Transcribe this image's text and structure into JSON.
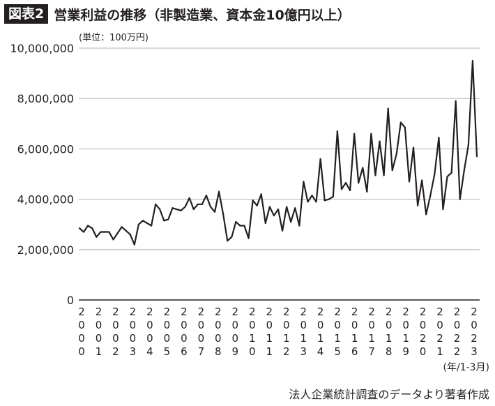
{
  "header": {
    "badge": "図表2",
    "title": "営業利益の推移（非製造業、資本金10億円以上）"
  },
  "unit_label": "(単位：100万円)",
  "period_label": "(年/1-3月)",
  "source_note": "法人企業統計調査のデータより著者作成",
  "colors": {
    "line": "#231f20",
    "grid": "#b3b3b3",
    "badge_bg": "#231f20",
    "badge_text": "#ffffff"
  },
  "chart_data": {
    "type": "line",
    "title": "営業利益の推移（非製造業、資本金10億円以上）",
    "ylabel": "(単位：100万円)",
    "xlabel": "(年/1-3月)",
    "ylim": [
      0,
      10000000
    ],
    "yticks": [
      0,
      2000000,
      4000000,
      6000000,
      8000000,
      10000000
    ],
    "ytick_labels": [
      "0",
      "2,000,000",
      "4,000,000",
      "6,000,000",
      "8,000,000",
      "10,000,000"
    ],
    "xtick_labels": [
      "2000",
      "2001",
      "2002",
      "2003",
      "2004",
      "2005",
      "2006",
      "2007",
      "2008",
      "2009",
      "2010",
      "2011",
      "2012",
      "2013",
      "2014",
      "2015",
      "2016",
      "2017",
      "2018",
      "2019",
      "2020",
      "2021",
      "2022",
      "2023"
    ],
    "frequency": "quarterly",
    "grid": true,
    "series": [
      {
        "values": [
          2850000,
          2700000,
          2950000,
          2850000,
          2500000,
          2700000,
          2700000,
          2700000,
          2400000,
          2650000,
          2900000,
          2750000,
          2600000,
          2200000,
          3000000,
          3150000,
          3050000,
          2950000,
          3800000,
          3600000,
          3150000,
          3200000,
          3650000,
          3600000,
          3550000,
          3700000,
          4050000,
          3600000,
          3800000,
          3800000,
          4150000,
          3700000,
          3500000,
          4300000,
          3400000,
          2350000,
          2500000,
          3100000,
          2950000,
          2950000,
          2450000,
          3950000,
          3750000,
          4200000,
          3050000,
          3700000,
          3350000,
          3600000,
          2750000,
          3700000,
          3100000,
          3650000,
          2950000,
          4700000,
          3900000,
          4150000,
          3900000,
          5600000,
          3950000,
          4000000,
          4100000,
          6700000,
          4400000,
          4650000,
          4350000,
          6600000,
          4650000,
          5250000,
          4300000,
          6600000,
          4950000,
          6300000,
          4950000,
          7600000,
          5150000,
          5800000,
          7050000,
          6850000,
          4700000,
          6050000,
          3750000,
          4750000,
          3400000,
          4150000,
          5000000,
          6450000,
          3600000,
          4900000,
          5050000,
          7900000,
          4000000,
          5150000,
          6150000,
          9500000,
          5700000
        ]
      }
    ]
  }
}
